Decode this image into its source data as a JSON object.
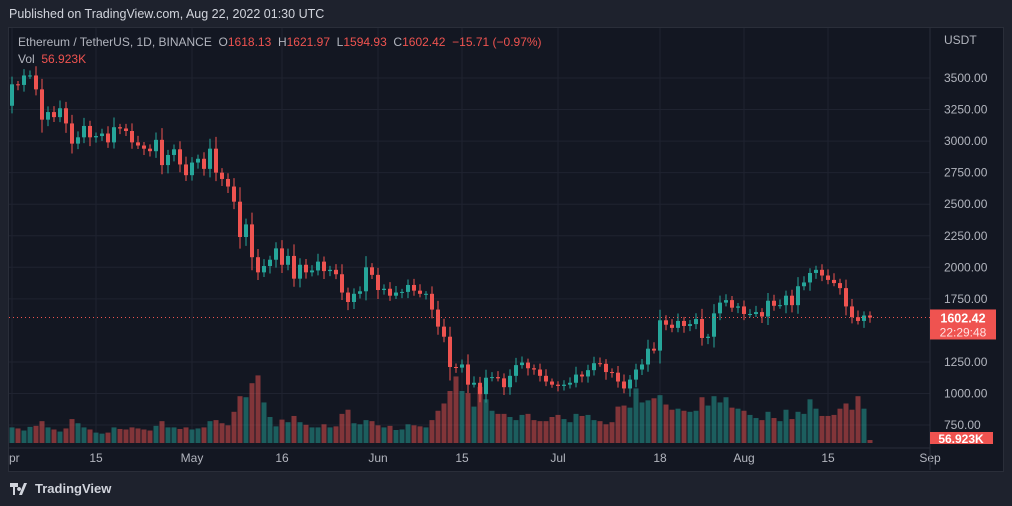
{
  "published": "Published on TradingView.com, Aug 22, 2022 01:30 UTC",
  "legend": {
    "symbol": "Ethereum / TetherUS, 1D, BINANCE",
    "o_label": "O",
    "open": "1618.13",
    "h_label": "H",
    "high": "1621.97",
    "l_label": "L",
    "low": "1594.93",
    "c_label": "C",
    "close": "1602.42",
    "change": "−15.71 (−0.97%)",
    "vol_label": "Vol",
    "vol_value": "56.923K"
  },
  "footer": {
    "brand": "TradingView"
  },
  "colors": {
    "up": "#26a69a",
    "down": "#ef5350",
    "bg": "#131722",
    "grid": "#1f2330"
  },
  "chart_data": {
    "type": "candlestick",
    "title": "Ethereum / TetherUS, 1D, BINANCE",
    "currency": "USDT",
    "start_date": "2022-04-01",
    "y_ticks": [
      "3500.00",
      "3250.00",
      "3000.00",
      "2750.00",
      "2500.00",
      "2250.00",
      "2000.00",
      "1750.00",
      "1250.00",
      "1000.00",
      "750.00"
    ],
    "y_tick_values": [
      3500,
      3250,
      3000,
      2750,
      2500,
      2250,
      2000,
      1750,
      1250,
      1000,
      750
    ],
    "x_ticks": [
      {
        "label": "pr",
        "day": 0
      },
      {
        "label": "15",
        "day": 14
      },
      {
        "label": "May",
        "day": 30
      },
      {
        "label": "16",
        "day": 45
      },
      {
        "label": "Jun",
        "day": 61
      },
      {
        "label": "15",
        "day": 75
      },
      {
        "label": "Jul",
        "day": 91
      },
      {
        "label": "18",
        "day": 108
      },
      {
        "label": "Aug",
        "day": 122
      },
      {
        "label": "15",
        "day": 136
      },
      {
        "label": "Sep",
        "day": 153
      }
    ],
    "last_price": "1602.42",
    "countdown": "22:29:48",
    "last_volume": "56.923K",
    "first_open": 3280,
    "closes": [
      3450,
      3445,
      3520,
      3520,
      3410,
      3170,
      3230,
      3190,
      3260,
      3140,
      2980,
      3030,
      3120,
      3030,
      3040,
      3060,
      2990,
      3110,
      3100,
      3080,
      2990,
      2965,
      2940,
      2920,
      3010,
      2810,
      2890,
      2935,
      2815,
      2730,
      2830,
      2860,
      2780,
      2940,
      2750,
      2700,
      2640,
      2520,
      2240,
      2340,
      2080,
      1960,
      2010,
      2060,
      2150,
      2020,
      2090,
      1910,
      2020,
      1960,
      1975,
      2045,
      1970,
      1980,
      1945,
      1800,
      1725,
      1790,
      1810,
      2000,
      1940,
      1820,
      1830,
      1775,
      1800,
      1805,
      1860,
      1815,
      1790,
      1790,
      1665,
      1530,
      1450,
      1210,
      1205,
      1230,
      1070,
      1085,
      995,
      1125,
      1130,
      1120,
      1050,
      1140,
      1225,
      1245,
      1200,
      1190,
      1140,
      1095,
      1070,
      1060,
      1070,
      1085,
      1150,
      1135,
      1185,
      1240,
      1235,
      1170,
      1165,
      1095,
      1040,
      1110,
      1190,
      1230,
      1355,
      1340,
      1580,
      1545,
      1520,
      1575,
      1535,
      1550,
      1590,
      1440,
      1450,
      1635,
      1720,
      1740,
      1680,
      1690,
      1630,
      1630,
      1645,
      1610,
      1735,
      1695,
      1700,
      1775,
      1700,
      1850,
      1880,
      1955,
      1980,
      1935,
      1900,
      1875,
      1835,
      1690,
      1605,
      1575,
      1618,
      1602
    ],
    "volumes_k": [
      300,
      280,
      240,
      310,
      330,
      420,
      300,
      260,
      220,
      280,
      460,
      380,
      300,
      260,
      200,
      180,
      200,
      300,
      270,
      260,
      300,
      280,
      260,
      240,
      330,
      420,
      300,
      300,
      270,
      300,
      260,
      280,
      300,
      420,
      440,
      380,
      340,
      600,
      900,
      880,
      1150,
      1300,
      780,
      500,
      320,
      450,
      400,
      520,
      400,
      350,
      300,
      300,
      360,
      300,
      320,
      560,
      640,
      380,
      360,
      440,
      420,
      340,
      300,
      330,
      250,
      260,
      360,
      340,
      320,
      300,
      440,
      620,
      760,
      1000,
      1280,
      1000,
      960,
      700,
      1080,
      840,
      620,
      560,
      560,
      500,
      440,
      540,
      560,
      440,
      420,
      420,
      500,
      540,
      460,
      400,
      560,
      520,
      540,
      440,
      420,
      360,
      400,
      700,
      720,
      680,
      1050,
      780,
      820,
      860,
      920,
      740,
      640,
      660,
      620,
      600,
      620,
      880,
      720,
      900,
      780,
      880,
      680,
      660,
      620,
      540,
      480,
      440,
      600,
      480,
      420,
      640,
      460,
      600,
      560,
      840,
      660,
      520,
      520,
      540,
      660,
      760,
      640,
      900,
      660,
      57
    ]
  }
}
